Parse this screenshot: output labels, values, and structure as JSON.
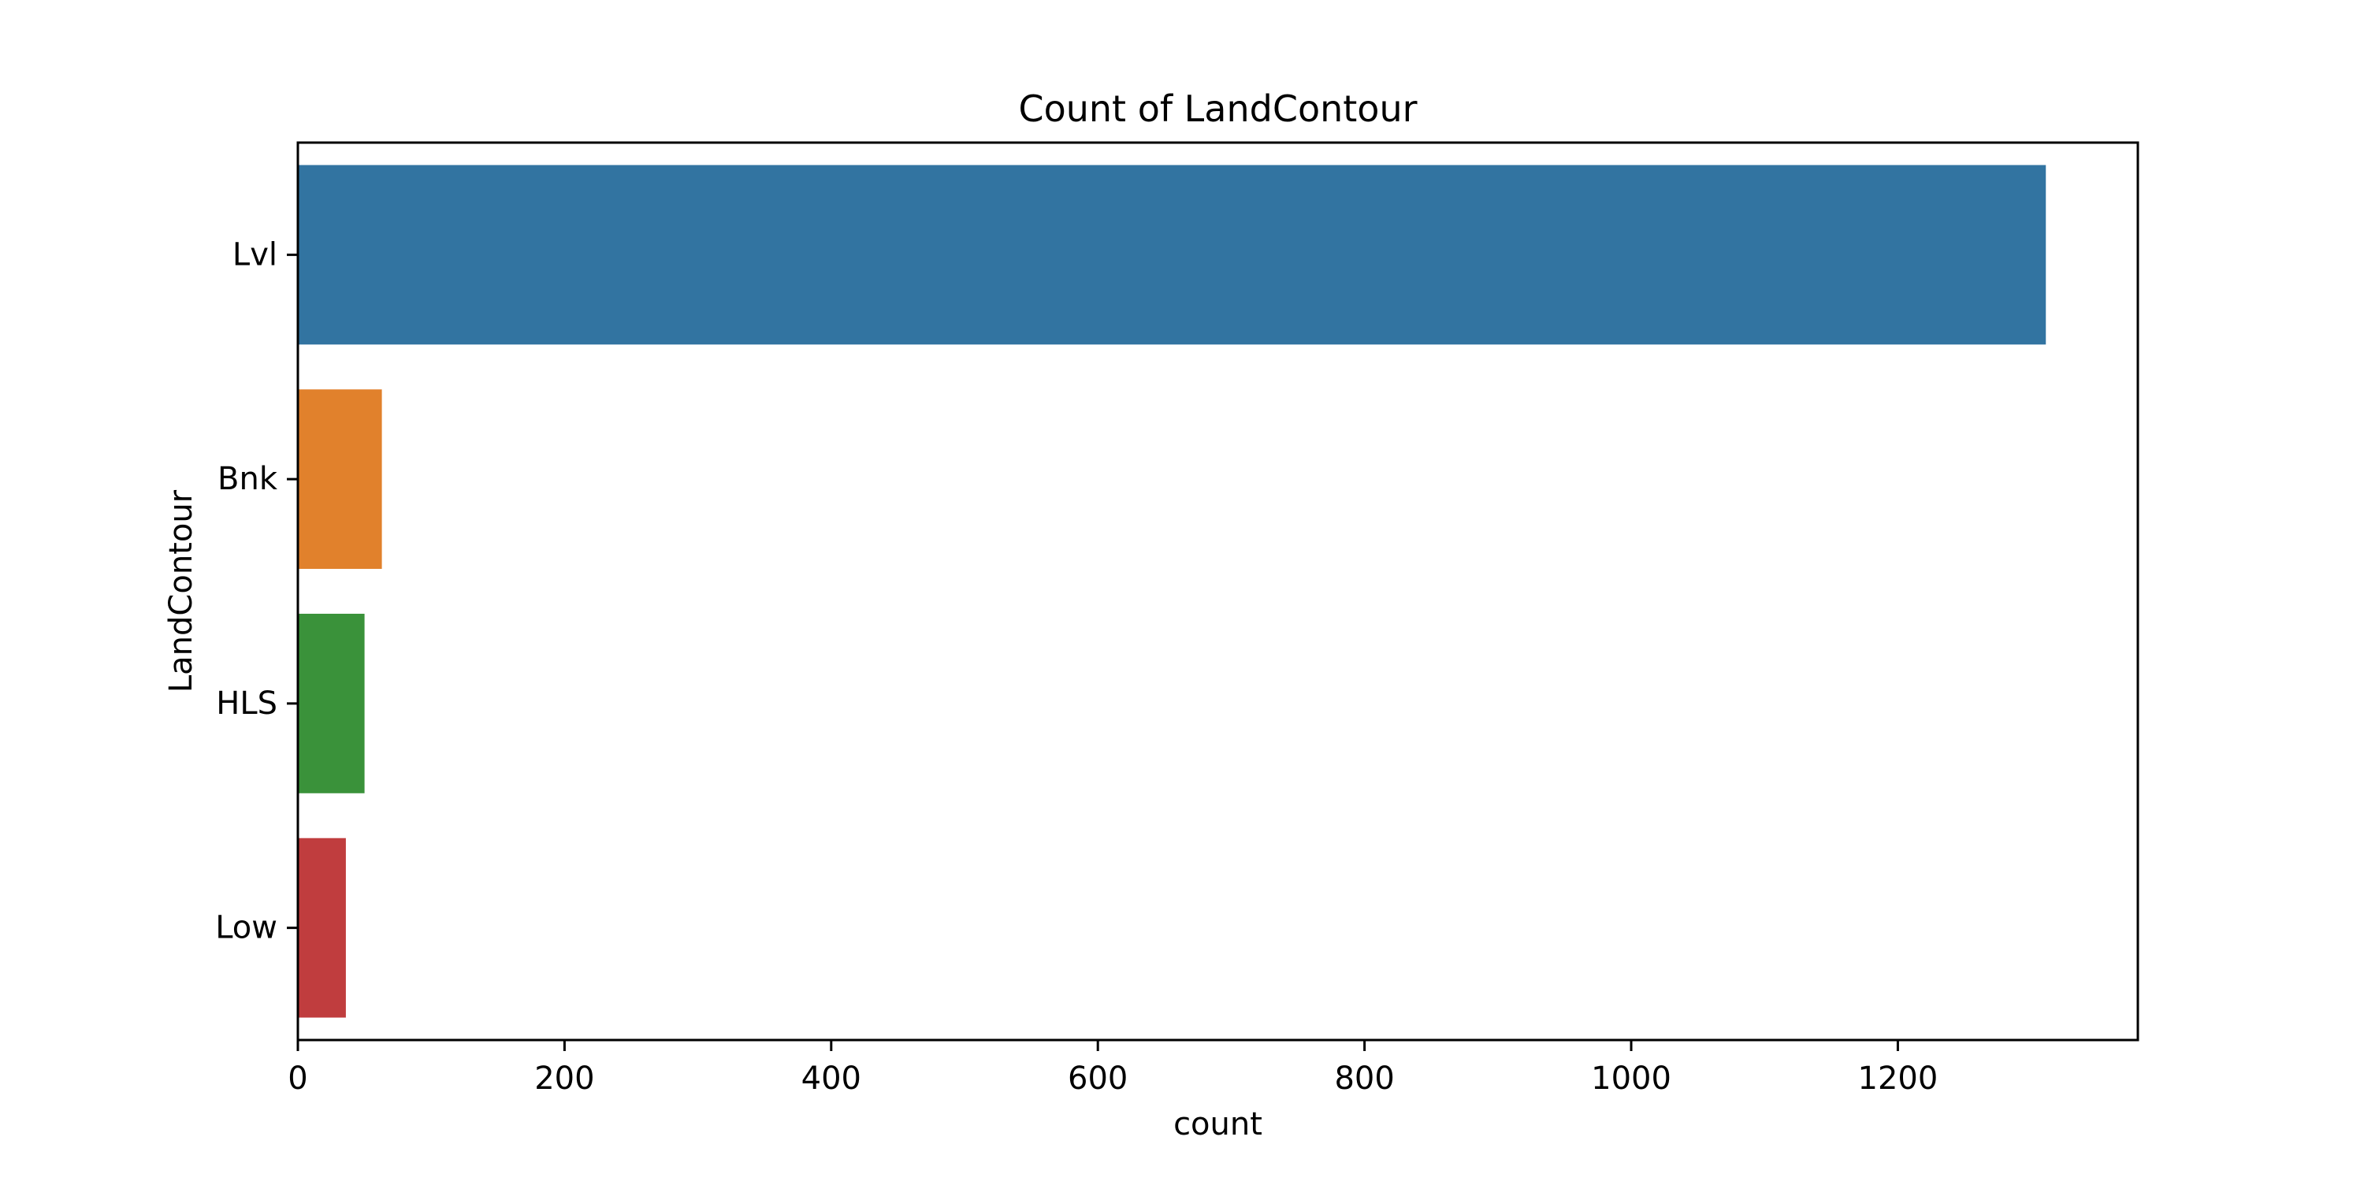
{
  "chart_data": {
    "type": "bar",
    "orientation": "horizontal",
    "title": "Count of LandContour",
    "xlabel": "count",
    "ylabel": "LandContour",
    "categories": [
      "Lvl",
      "Bnk",
      "HLS",
      "Low"
    ],
    "values": [
      1311,
      63,
      50,
      36
    ],
    "colors": [
      "#3274a1",
      "#e1812c",
      "#3a923a",
      "#c03d3e"
    ],
    "xlim": [
      0,
      1380
    ],
    "xticks": [
      0,
      200,
      400,
      600,
      800,
      1000,
      1200
    ],
    "xtick_labels": [
      "0",
      "200",
      "400",
      "600",
      "800",
      "1000",
      "1200"
    ],
    "grid": false,
    "legend": "none"
  }
}
